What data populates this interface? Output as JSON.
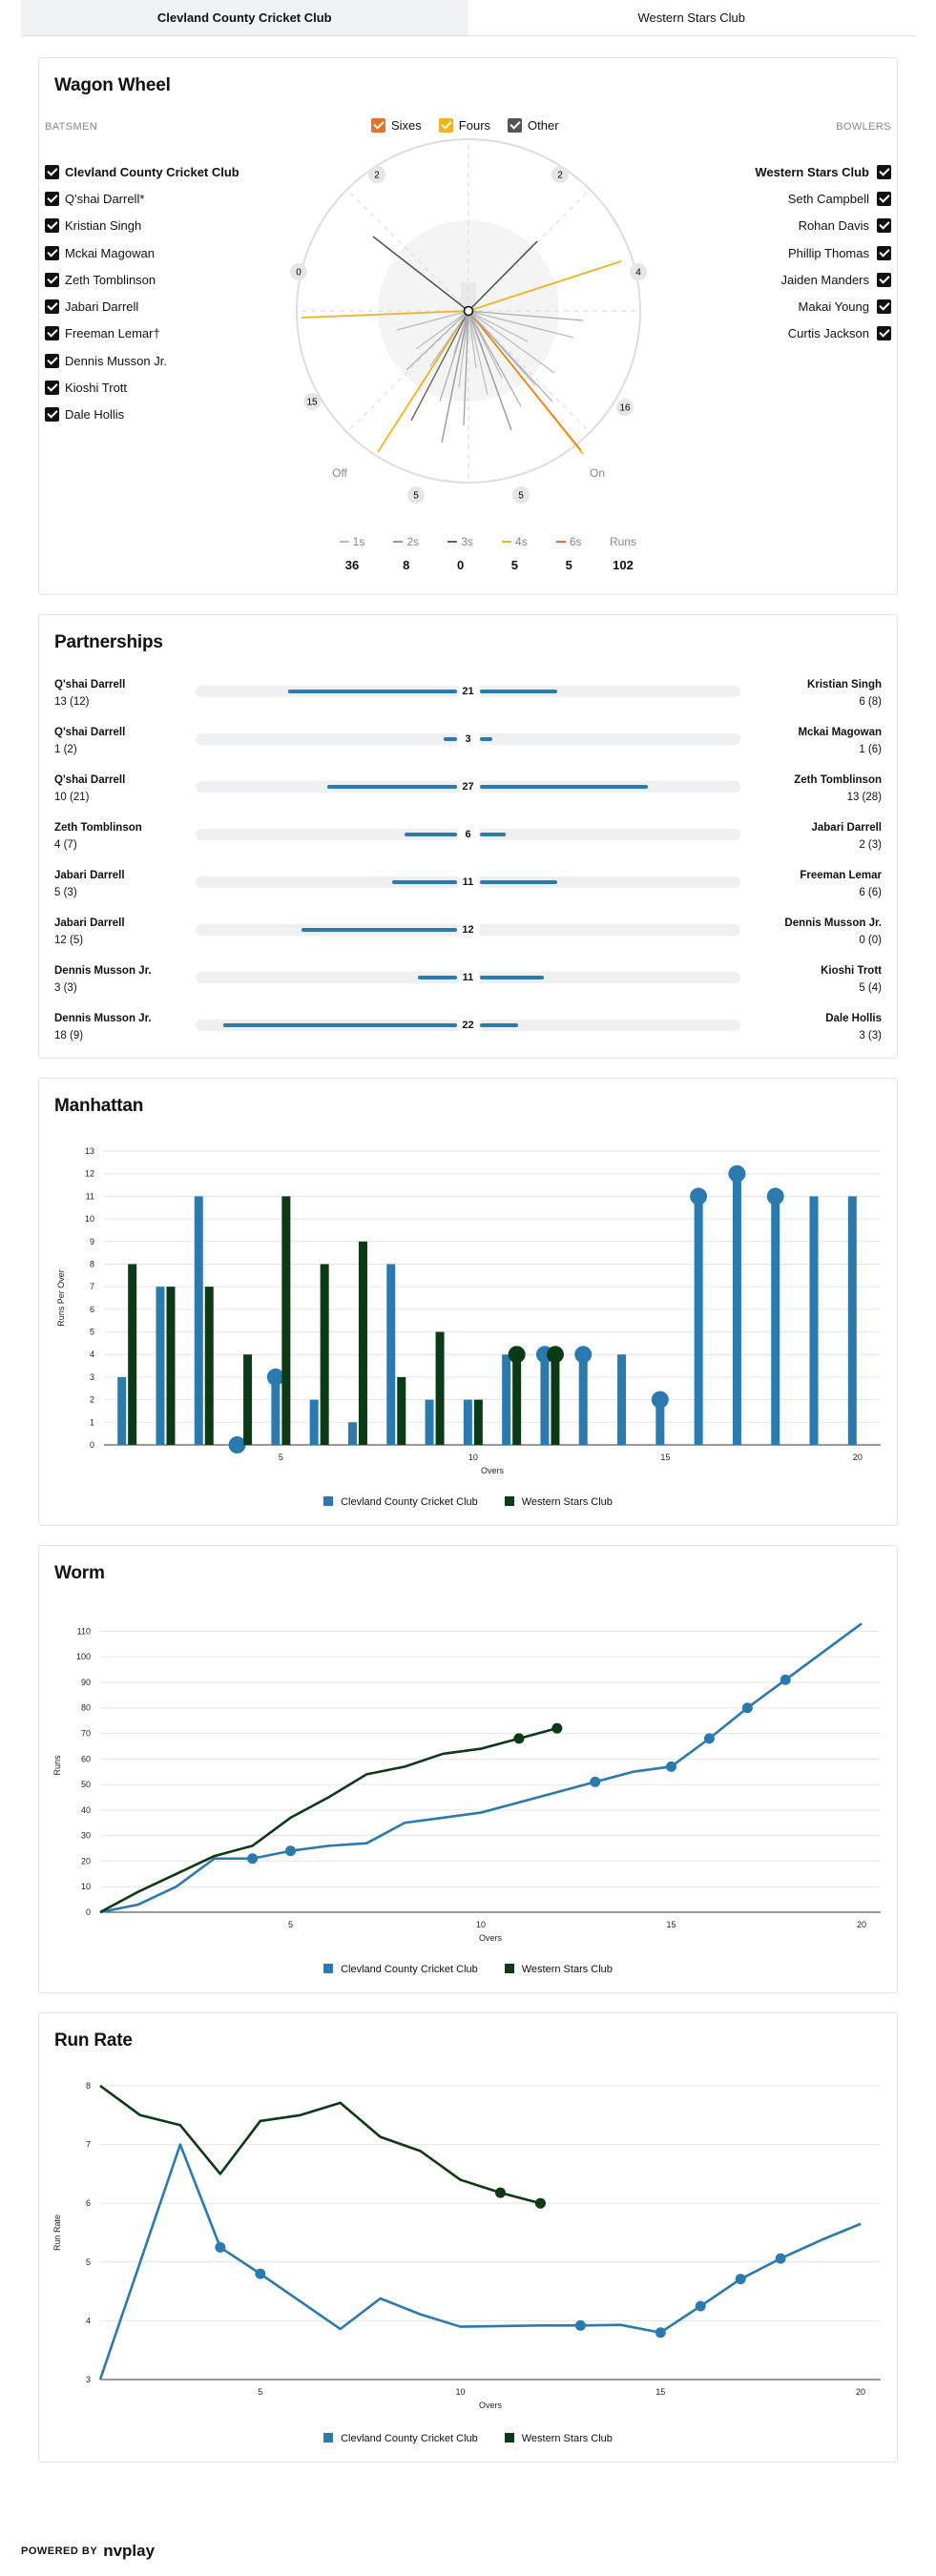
{
  "tabs": [
    {
      "label": "Clevland County Cricket Club",
      "active": true
    },
    {
      "label": "Western Stars Club",
      "active": false
    }
  ],
  "wagon_wheel": {
    "title": "Wagon Wheel",
    "batsmen_label": "BATSMEN",
    "bowlers_label": "BOWLERS",
    "legend": [
      {
        "label": "Sixes",
        "color": "#e8722c"
      },
      {
        "label": "Fours",
        "color": "#f0b323"
      },
      {
        "label": "Other",
        "color": "#555555"
      }
    ],
    "batting_team": "Clevland County Cricket Club",
    "batsmen": [
      "Q'shai Darrell*",
      "Kristian Singh",
      "Mckai Magowan",
      "Zeth Tomblinson",
      "Jabari Darrell",
      "Freeman Lemar†",
      "Dennis Musson Jr.",
      "Kioshi Trott",
      "Dale Hollis"
    ],
    "bowling_team": "Western Stars Club",
    "bowlers": [
      "Seth Campbell",
      "Rohan Davis",
      "Phillip Thomas",
      "Jaiden Manders",
      "Makai Young",
      "Curtis Jackson"
    ],
    "zone_labels": [
      "2",
      "2",
      "0",
      "4",
      "15",
      "16",
      "5",
      "5"
    ],
    "off_label": "Off",
    "on_label": "On",
    "runs_summary": [
      {
        "label": "1s",
        "value": "36",
        "color": "#bbbbbb"
      },
      {
        "label": "2s",
        "value": "8",
        "color": "#999999"
      },
      {
        "label": "3s",
        "value": "0",
        "color": "#666666"
      },
      {
        "label": "4s",
        "value": "5",
        "color": "#f0b323"
      },
      {
        "label": "6s",
        "value": "5",
        "color": "#e8722c"
      },
      {
        "label": "Runs",
        "value": "102",
        "color": ""
      }
    ]
  },
  "partnerships": {
    "title": "Partnerships",
    "rows": [
      {
        "left_name": "Q'shai Darrell",
        "left_score": "13 (12)",
        "right_name": "Kristian Singh",
        "right_score": "6 (8)",
        "total": "21",
        "left_runs": 13,
        "right_runs": 6
      },
      {
        "left_name": "Q'shai Darrell",
        "left_score": "1 (2)",
        "right_name": "Mckai Magowan",
        "right_score": "1 (6)",
        "total": "3",
        "left_runs": 1,
        "right_runs": 1
      },
      {
        "left_name": "Q'shai Darrell",
        "left_score": "10 (21)",
        "right_name": "Zeth Tomblinson",
        "right_score": "13 (28)",
        "total": "27",
        "left_runs": 10,
        "right_runs": 13
      },
      {
        "left_name": "Zeth Tomblinson",
        "left_score": "4 (7)",
        "right_name": "Jabari Darrell",
        "right_score": "2 (3)",
        "total": "6",
        "left_runs": 4,
        "right_runs": 2
      },
      {
        "left_name": "Jabari Darrell",
        "left_score": "5 (3)",
        "right_name": "Freeman Lemar",
        "right_score": "6 (6)",
        "total": "11",
        "left_runs": 5,
        "right_runs": 6
      },
      {
        "left_name": "Jabari Darrell",
        "left_score": "12 (5)",
        "right_name": "Dennis Musson Jr.",
        "right_score": "0 (0)",
        "total": "12",
        "left_runs": 12,
        "right_runs": 0
      },
      {
        "left_name": "Dennis Musson Jr.",
        "left_score": "3 (3)",
        "right_name": "Kioshi Trott",
        "right_score": "5 (4)",
        "total": "11",
        "left_runs": 3,
        "right_runs": 5
      },
      {
        "left_name": "Dennis Musson Jr.",
        "left_score": "18 (9)",
        "right_name": "Dale Hollis",
        "right_score": "3 (3)",
        "total": "22",
        "left_runs": 18,
        "right_runs": 3
      }
    ]
  },
  "manhattan": {
    "title": "Manhattan",
    "legend": [
      {
        "label": "Clevland County Cricket Club",
        "color": "#2a7ab0"
      },
      {
        "label": "Western Stars Club",
        "color": "#0c3a14"
      }
    ]
  },
  "worm": {
    "title": "Worm",
    "legend": [
      {
        "label": "Clevland County Cricket Club",
        "color": "#2a7ab0"
      },
      {
        "label": "Western Stars Club",
        "color": "#0c3a14"
      }
    ]
  },
  "run_rate": {
    "title": "Run Rate",
    "legend": [
      {
        "label": "Clevland County Cricket Club",
        "color": "#2a7ab0"
      },
      {
        "label": "Western Stars Club",
        "color": "#0c3a14"
      }
    ]
  },
  "chart_data": [
    {
      "type": "bar",
      "title": "Manhattan",
      "xlabel": "Overs",
      "ylabel": "Runs Per Over",
      "ylim": [
        0,
        13
      ],
      "yticks": [
        0,
        1,
        2,
        3,
        4,
        5,
        6,
        7,
        8,
        9,
        10,
        11,
        12,
        13
      ],
      "xticks": [
        5,
        10,
        15,
        20
      ],
      "categories": [
        1,
        2,
        3,
        4,
        5,
        6,
        7,
        8,
        9,
        10,
        11,
        12,
        13,
        14,
        15,
        16,
        17,
        18,
        19,
        20
      ],
      "series": [
        {
          "name": "Clevland County Cricket Club",
          "color": "#2a7ab0",
          "values": [
            3,
            7,
            11,
            0,
            3,
            2,
            1,
            8,
            2,
            2,
            4,
            4,
            4,
            4,
            2,
            11,
            12,
            11,
            11,
            11
          ],
          "wickets": [
            4,
            5,
            12,
            13,
            15,
            16,
            17,
            18
          ]
        },
        {
          "name": "Western Stars Club",
          "color": "#0c3a14",
          "values": [
            8,
            7,
            7,
            4,
            11,
            8,
            9,
            3,
            5,
            2,
            4,
            4,
            null,
            null,
            null,
            null,
            null,
            null,
            null,
            null
          ],
          "wickets": [
            11,
            12
          ]
        }
      ]
    },
    {
      "type": "line",
      "title": "Worm",
      "xlabel": "Overs",
      "ylabel": "Runs",
      "ylim": [
        0,
        115
      ],
      "yticks": [
        0,
        10,
        20,
        30,
        40,
        50,
        60,
        70,
        80,
        90,
        100,
        110
      ],
      "xticks": [
        5,
        10,
        15,
        20
      ],
      "series": [
        {
          "name": "Clevland County Cricket Club",
          "color": "#2a7ab0",
          "x": [
            0,
            1,
            2,
            3,
            4,
            5,
            6,
            7,
            8,
            9,
            10,
            11,
            12,
            13,
            14,
            15,
            16,
            17,
            18,
            19,
            20
          ],
          "y": [
            0,
            3,
            10,
            21,
            21,
            24,
            26,
            27,
            35,
            37,
            39,
            43,
            47,
            51,
            55,
            57,
            68,
            80,
            91,
            102,
            113
          ],
          "wickets": [
            4,
            5,
            13,
            15,
            16,
            17,
            18
          ]
        },
        {
          "name": "Western Stars Club",
          "color": "#0c3a14",
          "x": [
            0,
            1,
            2,
            3,
            4,
            5,
            6,
            7,
            8,
            9,
            10,
            11,
            12
          ],
          "y": [
            0,
            8,
            15,
            22,
            26,
            37,
            45,
            54,
            57,
            62,
            64,
            68,
            72
          ],
          "wickets": [
            11,
            12
          ]
        }
      ]
    },
    {
      "type": "line",
      "title": "Run Rate",
      "xlabel": "Overs",
      "ylabel": "Run Rate",
      "ylim": [
        3,
        8
      ],
      "yticks": [
        3,
        4,
        5,
        6,
        7,
        8
      ],
      "xticks": [
        5,
        10,
        15,
        20
      ],
      "series": [
        {
          "name": "Clevland County Cricket Club",
          "color": "#2a7ab0",
          "x": [
            1,
            2,
            3,
            4,
            5,
            6,
            7,
            8,
            9,
            10,
            11,
            12,
            13,
            14,
            15,
            16,
            17,
            18,
            19,
            20
          ],
          "y": [
            3,
            5,
            7,
            5.25,
            4.8,
            4.33,
            3.86,
            4.38,
            4.11,
            3.9,
            3.91,
            3.92,
            3.92,
            3.93,
            3.8,
            4.25,
            4.71,
            5.06,
            5.37,
            5.65
          ],
          "wickets": [
            4,
            5,
            13,
            15,
            16,
            17,
            18
          ]
        },
        {
          "name": "Western Stars Club",
          "color": "#0c3a14",
          "x": [
            1,
            2,
            3,
            4,
            5,
            6,
            7,
            8,
            9,
            10,
            11,
            12
          ],
          "y": [
            8,
            7.5,
            7.33,
            6.5,
            7.4,
            7.5,
            7.71,
            7.13,
            6.89,
            6.4,
            6.18,
            6.0
          ],
          "wickets": [
            11,
            12
          ]
        }
      ]
    }
  ],
  "footer": {
    "powered_by": "POWERED BY",
    "brand": "nvplay"
  }
}
